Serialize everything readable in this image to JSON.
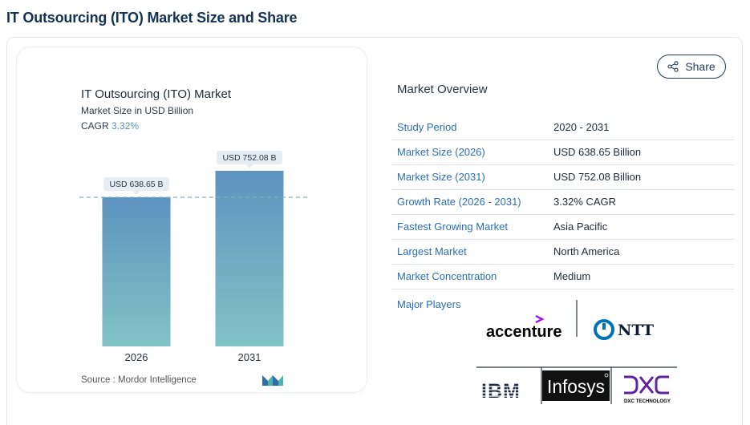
{
  "page_title": "IT Outsourcing (ITO) Market Size and Share",
  "chart": {
    "title": "IT Outsourcing (ITO) Market",
    "subtitle": "Market Size in USD Billion",
    "cagr_label": "CAGR",
    "cagr_value": "3.32%",
    "source": "Source :  Mordor Intelligence"
  },
  "chart_data": {
    "type": "bar",
    "categories": [
      "2026",
      "2031"
    ],
    "values": [
      638.65,
      752.08
    ],
    "data_labels": [
      "USD 638.65 B",
      "USD 752.08 B"
    ],
    "title": "IT Outsourcing (ITO) Market",
    "subtitle": "Market Size in USD Billion",
    "annotation": "CAGR 3.32%",
    "xlabel": "",
    "ylabel": "",
    "grid": false,
    "reference_line": 638.65,
    "colors": {
      "bar_top": "#5e93bf",
      "bar_bottom": "#80c3c6",
      "reference_line": "#7fb7bb",
      "label_bg": "#e6edf3"
    }
  },
  "share_button": {
    "label": "Share",
    "icon": "share-icon"
  },
  "overview": {
    "title": "Market Overview",
    "rows": [
      {
        "key": "Study Period",
        "value": "2020 - 2031"
      },
      {
        "key": "Market Size (2026)",
        "value": "USD 638.65 Billion"
      },
      {
        "key": "Market Size (2031)",
        "value": "USD 752.08 Billion"
      },
      {
        "key": "Growth Rate (2026 - 2031)",
        "value": "3.32% CAGR"
      },
      {
        "key": "Fastest Growing Market",
        "value": "Asia Pacific"
      },
      {
        "key": "Largest Market",
        "value": "North America"
      },
      {
        "key": "Market Concentration",
        "value": "Medium"
      }
    ]
  },
  "major_players": {
    "label": "Major Players",
    "logos": [
      "accenture",
      "NTT",
      "IBM",
      "Infosys",
      "DXC TECHNOLOGY"
    ]
  },
  "colors": {
    "title": "#143354",
    "link": "#2a6fb5"
  }
}
